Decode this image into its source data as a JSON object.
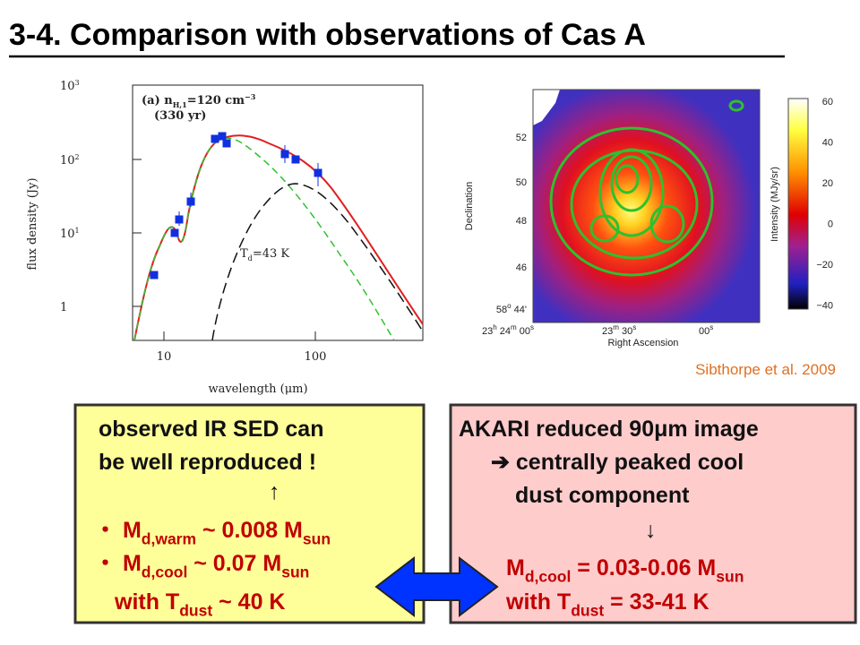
{
  "title": "3-4. Comparison with observations of Cas A",
  "sed_figure": {
    "panel": [
      "(a) n",
      "H,1",
      "=120 cm",
      "−3"
    ],
    "age": "(330 yr)",
    "temp": [
      "T",
      "d",
      "=43 K"
    ],
    "y_axis_label": "flux density (Jy)",
    "x_axis_label": "wavelength (μm)",
    "yticks": [
      [
        "10",
        "3"
      ],
      [
        "10",
        "2"
      ],
      [
        "10",
        "1"
      ],
      [
        "1"
      ]
    ],
    "xticks": [
      "10",
      "100"
    ]
  },
  "map_figure": {
    "y_axis_label": "Declination",
    "x_axis_label": "Right Ascension",
    "colorbar_label": "Intensity (MJy/sr)",
    "dec_ticks": [
      [
        "52"
      ],
      [
        "50"
      ],
      [
        "48"
      ],
      [
        "46"
      ],
      [
        "58",
        "o",
        " 44'"
      ]
    ],
    "ra_ticks": [
      [
        "23",
        "h",
        " 24",
        "m",
        " 00",
        "s"
      ],
      [
        "23",
        "m",
        " 30",
        "s"
      ],
      [
        "00",
        "s"
      ]
    ],
    "colorbar_ticks": [
      "60",
      "40",
      "20",
      "0",
      "−20",
      "−40"
    ]
  },
  "citation": "Sibthorpe et al. 2009",
  "left_box": {
    "intro": [
      "observed IR SED can",
      "be well reproduced !"
    ],
    "arrow": "↑",
    "bullets": [
      [
        "・ M",
        "d,warm",
        " ~ 0.008 M",
        "sun"
      ],
      [
        "・ M",
        "d,cool",
        " ~ 0.07 M",
        "sun"
      ]
    ],
    "temperature": [
      "with T",
      "dust",
      " ~ 40 K"
    ]
  },
  "right_box": {
    "intro": [
      "AKARI reduced 90μm image",
      "➔ centrally peaked cool",
      "dust component"
    ],
    "arrow": "↓",
    "mass": [
      "M",
      "d,cool",
      " = 0.03-0.06 M",
      "sun"
    ],
    "temperature": [
      "with T",
      "dust",
      " = 33-41 K"
    ]
  }
}
